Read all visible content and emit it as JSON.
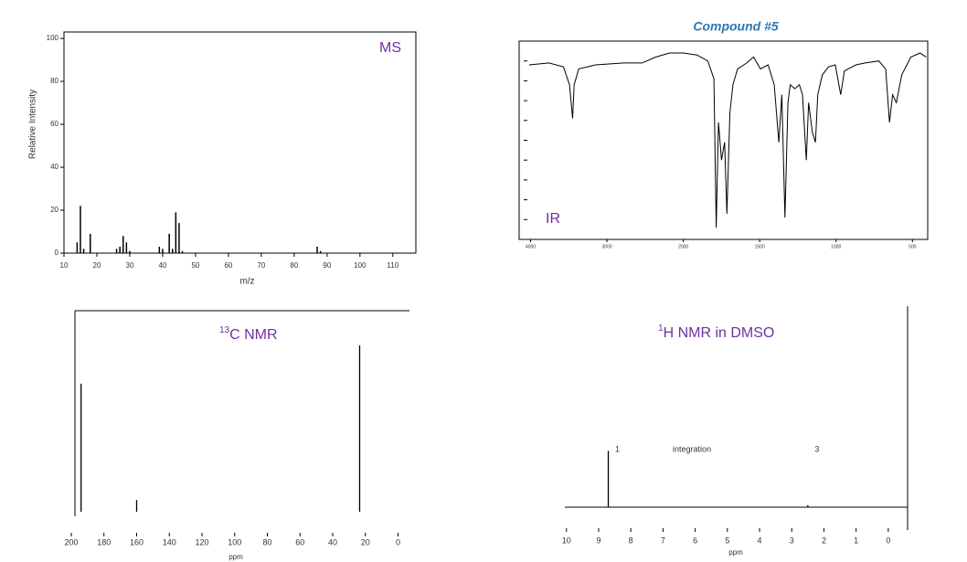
{
  "title": "Compound #5",
  "chart_data": [
    {
      "type": "bar",
      "label": "MS",
      "xlabel": "m/z",
      "ylabel": "Relative Intensity",
      "color": "#000000",
      "x": [
        14,
        15,
        16,
        18,
        26,
        27,
        28,
        29,
        30,
        39,
        40,
        42,
        43,
        44,
        45,
        46,
        87,
        88
      ],
      "values": [
        5,
        22,
        2,
        9,
        2,
        3,
        8,
        5,
        1,
        3,
        2,
        9,
        2,
        19,
        14,
        1,
        3,
        1
      ],
      "xlim": [
        10,
        117
      ],
      "ylim": [
        0,
        103
      ],
      "xticks": [
        10,
        20,
        30,
        40,
        50,
        60,
        70,
        80,
        90,
        100,
        110
      ],
      "yticks": [
        0,
        20,
        40,
        60,
        80,
        100
      ]
    },
    {
      "type": "line",
      "label": "IR",
      "color": "#000000",
      "x": [
        4020,
        3760,
        3570,
        3490,
        3450,
        3430,
        3370,
        3150,
        2780,
        2540,
        2360,
        2180,
        2000,
        1910,
        1840,
        1800,
        1785,
        1770,
        1750,
        1730,
        1715,
        1695,
        1675,
        1645,
        1585,
        1540,
        1495,
        1445,
        1405,
        1375,
        1355,
        1335,
        1315,
        1300,
        1270,
        1240,
        1220,
        1195,
        1180,
        1155,
        1135,
        1120,
        1090,
        1050,
        1005,
        970,
        945,
        870,
        810,
        720,
        675,
        650,
        630,
        605,
        570,
        510,
        450,
        410
      ],
      "values": [
        88,
        89,
        87,
        78,
        61,
        78,
        86,
        88,
        89,
        89,
        92,
        94,
        94,
        93,
        90,
        81,
        6,
        59,
        40,
        49,
        13,
        64,
        78,
        86,
        89,
        92,
        86,
        88,
        78,
        49,
        73,
        11,
        69,
        78,
        76,
        78,
        73,
        40,
        69,
        54,
        49,
        73,
        83,
        87,
        88,
        73,
        85,
        88,
        89,
        90,
        86,
        59,
        73,
        69,
        83,
        92,
        94,
        92
      ],
      "xlim": [
        4150,
        400
      ],
      "ylim": [
        0,
        100
      ],
      "xticks": [
        4000,
        3000,
        2000,
        1500,
        1000,
        500
      ],
      "yticks": [
        0,
        10,
        20,
        30,
        40,
        50,
        60,
        70,
        80,
        90,
        100
      ]
    },
    {
      "type": "stem",
      "label_sup": "13",
      "label": "C NMR",
      "xlabel": "ppm",
      "color": "#000000",
      "x": [
        194,
        160,
        23.5
      ],
      "values": [
        77,
        7,
        100
      ],
      "xlim": [
        200,
        -7
      ],
      "ylim": [
        0,
        100
      ],
      "xticks": [
        200,
        180,
        160,
        140,
        120,
        100,
        80,
        60,
        40,
        20,
        0
      ]
    },
    {
      "type": "stem",
      "label_sup": "1",
      "label": "H NMR in DMSO",
      "xlabel": "ppm",
      "color": "#000000",
      "x": [
        8.7,
        2.5
      ],
      "values": [
        28,
        1
      ],
      "integrations": [
        1,
        3
      ],
      "annotation": "integration",
      "xlim": [
        10.05,
        -0.6
      ],
      "ylim": [
        0,
        100
      ],
      "xticks": [
        10,
        9,
        8,
        7,
        6,
        5,
        4,
        3,
        2,
        1,
        0
      ]
    }
  ]
}
